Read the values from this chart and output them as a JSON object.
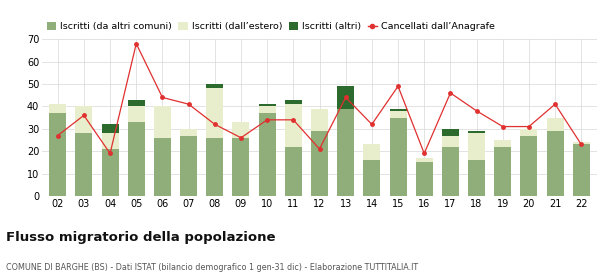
{
  "years": [
    "02",
    "03",
    "04",
    "05",
    "06",
    "07",
    "08",
    "09",
    "10",
    "11",
    "12",
    "13",
    "14",
    "15",
    "16",
    "17",
    "18",
    "19",
    "20",
    "21",
    "22"
  ],
  "iscritti_altri_comuni": [
    37,
    28,
    21,
    33,
    26,
    27,
    26,
    26,
    37,
    22,
    29,
    39,
    16,
    35,
    15,
    22,
    16,
    22,
    27,
    29,
    23
  ],
  "iscritti_estero": [
    4,
    12,
    7,
    7,
    14,
    3,
    22,
    7,
    3,
    19,
    10,
    0,
    7,
    3,
    2,
    5,
    12,
    3,
    3,
    6,
    1
  ],
  "iscritti_altri": [
    0,
    0,
    4,
    3,
    0,
    0,
    2,
    0,
    1,
    2,
    0,
    10,
    0,
    1,
    0,
    3,
    1,
    0,
    0,
    0,
    0
  ],
  "cancellati": [
    27,
    36,
    19,
    68,
    44,
    41,
    32,
    26,
    34,
    34,
    21,
    44,
    32,
    49,
    19,
    46,
    38,
    31,
    31,
    41,
    23
  ],
  "color_comuni": "#8fae7a",
  "color_estero": "#e8eecc",
  "color_altri": "#2d6a2d",
  "color_cancellati": "#e03030",
  "ylim": [
    0,
    70
  ],
  "yticks": [
    0,
    10,
    20,
    30,
    40,
    50,
    60,
    70
  ],
  "title": "Flusso migratorio della popolazione",
  "subtitle": "COMUNE DI BARGHE (BS) - Dati ISTAT (bilancio demografico 1 gen-31 dic) - Elaborazione TUTTITALIA.IT",
  "legend_labels": [
    "Iscritti (da altri comuni)",
    "Iscritti (dall’estero)",
    "Iscritti (altri)",
    "Cancellati dall’Anagrafe"
  ],
  "bg_color": "#ffffff",
  "grid_color": "#d8d8d8"
}
